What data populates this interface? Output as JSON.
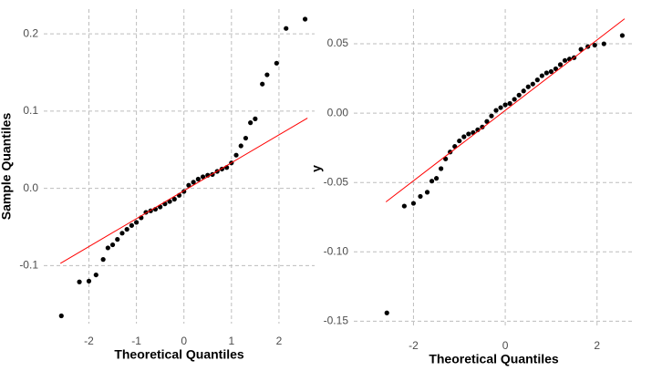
{
  "chart_data": [
    {
      "type": "scatter",
      "x_label": "Theoretical Quantiles",
      "y_label": "Sample Quantiles",
      "xlim": [
        -2.95,
        2.75
      ],
      "ylim": [
        -0.175,
        0.232
      ],
      "xticks": [
        -2,
        -1,
        0,
        1,
        2
      ],
      "yticks": [
        -0.1,
        {
          "value": 0,
          "label": "0.0"
        },
        0.1,
        0.2
      ],
      "grid": true,
      "color": "#000000",
      "x": [
        -2.58,
        -2.2,
        -2.0,
        -1.85,
        -1.7,
        -1.6,
        -1.5,
        -1.4,
        -1.3,
        -1.2,
        -1.1,
        -1.0,
        -0.9,
        -0.8,
        -0.7,
        -0.6,
        -0.5,
        -0.4,
        -0.3,
        -0.2,
        -0.1,
        0.0,
        0.1,
        0.2,
        0.3,
        0.4,
        0.5,
        0.6,
        0.7,
        0.8,
        0.9,
        1.0,
        1.1,
        1.2,
        1.3,
        1.4,
        1.5,
        1.65,
        1.75,
        1.95,
        2.15,
        2.55
      ],
      "values": [
        -0.165,
        -0.121,
        -0.12,
        -0.112,
        -0.092,
        -0.077,
        -0.073,
        -0.066,
        -0.058,
        -0.053,
        -0.048,
        -0.044,
        -0.038,
        -0.031,
        -0.029,
        -0.027,
        -0.024,
        -0.02,
        -0.017,
        -0.014,
        -0.009,
        -0.004,
        0.004,
        0.008,
        0.012,
        0.015,
        0.017,
        0.018,
        0.022,
        0.025,
        0.027,
        0.033,
        0.043,
        0.055,
        0.065,
        0.085,
        0.09,
        0.135,
        0.147,
        0.162,
        0.207,
        0.219
      ],
      "reference_line": {
        "x": [
          -2.6,
          2.6
        ],
        "y": [
          -0.097,
          0.091
        ],
        "color": "#ff0000"
      }
    },
    {
      "type": "scatter",
      "x_label": "Theoretical Quantiles",
      "y_label": "y",
      "xlim": [
        -3.3,
        2.8
      ],
      "ylim": [
        -0.155,
        0.075
      ],
      "xticks": [
        -2,
        0,
        2
      ],
      "yticks": [
        -0.15,
        {
          "value": -0.1,
          "label": "-0.10"
        },
        -0.05,
        {
          "value": 0,
          "label": "0.00"
        },
        0.05
      ],
      "grid": true,
      "color": "#000000",
      "x": [
        -2.58,
        -2.2,
        -2.0,
        -1.85,
        -1.7,
        -1.6,
        -1.5,
        -1.4,
        -1.3,
        -1.2,
        -1.1,
        -1.0,
        -0.9,
        -0.8,
        -0.7,
        -0.6,
        -0.5,
        -0.4,
        -0.3,
        -0.2,
        -0.1,
        0.0,
        0.1,
        0.2,
        0.3,
        0.4,
        0.5,
        0.6,
        0.7,
        0.8,
        0.9,
        1.0,
        1.1,
        1.2,
        1.3,
        1.4,
        1.5,
        1.65,
        1.8,
        1.95,
        2.15,
        2.55
      ],
      "values": [
        -0.144,
        -0.067,
        -0.065,
        -0.06,
        -0.057,
        -0.049,
        -0.047,
        -0.04,
        -0.033,
        -0.028,
        -0.024,
        -0.02,
        -0.017,
        -0.015,
        -0.014,
        -0.012,
        -0.01,
        -0.006,
        -0.002,
        0.002,
        0.004,
        0.006,
        0.007,
        0.01,
        0.013,
        0.016,
        0.019,
        0.021,
        0.024,
        0.027,
        0.029,
        0.03,
        0.032,
        0.035,
        0.038,
        0.039,
        0.04,
        0.046,
        0.048,
        0.049,
        0.05,
        0.056
      ],
      "reference_line": {
        "x": [
          -2.6,
          2.6
        ],
        "y": [
          -0.064,
          0.068
        ],
        "color": "#ff0000"
      }
    }
  ]
}
